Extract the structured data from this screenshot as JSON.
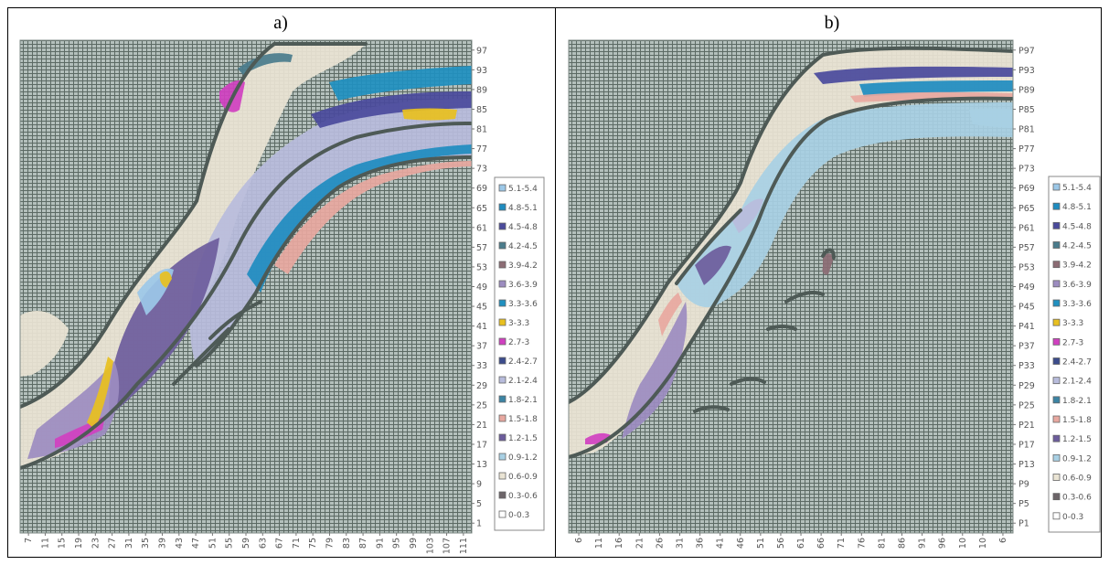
{
  "panels": [
    {
      "title": "a)",
      "y_ticks": [
        "97",
        "93",
        "89",
        "85",
        "81",
        "77",
        "73",
        "69",
        "65",
        "61",
        "57",
        "53",
        "49",
        "45",
        "41",
        "37",
        "33",
        "29",
        "25",
        "21",
        "17",
        "13",
        "9",
        "5",
        "1"
      ],
      "x_ticks": [
        "7",
        "11",
        "15",
        "19",
        "23",
        "27",
        "31",
        "35",
        "39",
        "43",
        "47",
        "51",
        "55",
        "59",
        "63",
        "67",
        "71",
        "75",
        "79",
        "83",
        "87",
        "91",
        "95",
        "99",
        "103",
        "107",
        "111"
      ]
    },
    {
      "title": "b)",
      "y_ticks": [
        "P97",
        "P93",
        "P89",
        "P85",
        "P81",
        "P77",
        "P73",
        "P69",
        "P65",
        "P61",
        "P57",
        "P53",
        "P49",
        "P45",
        "P41",
        "P37",
        "P33",
        "P29",
        "P25",
        "P21",
        "P17",
        "P13",
        "P9",
        "P5",
        "P1"
      ],
      "x_ticks": [
        "6",
        "11",
        "16",
        "21",
        "26",
        "31",
        "36",
        "41",
        "46",
        "51",
        "56",
        "61",
        "66",
        "71",
        "76",
        "81",
        "86",
        "91",
        "96",
        "10",
        "10",
        "6"
      ]
    }
  ],
  "legend": {
    "entries": [
      "5.1-5.4",
      "4.8-5.1",
      "4.5-4.8",
      "4.2-4.5",
      "3.9-4.2",
      "3.6-3.9",
      "3.3-3.6",
      "3-3.3",
      "2.7-3",
      "2.4-2.7",
      "2.1-2.4",
      "1.8-2.1",
      "1.5-1.8",
      "1.2-1.5",
      "0.9-1.2",
      "0.6-0.9",
      "0.3-0.6",
      "0-0.3"
    ],
    "colors": [
      "#9cc8e8",
      "#1e8cc0",
      "#4a4a9c",
      "#4a7c8c",
      "#8c6c74",
      "#9c8cc0",
      "#2090c0",
      "#e8c020",
      "#d040c0",
      "#3c4c8c",
      "#b8bcdc",
      "#3c84a4",
      "#e8a8a0",
      "#6c5c9c",
      "#a8d0e4",
      "#eae4d4",
      "#6c6468",
      "#ffffff"
    ]
  },
  "chart_data": [
    {
      "type": "heatmap",
      "title": "a)",
      "y_tick_labels": [
        "97",
        "93",
        "89",
        "85",
        "81",
        "77",
        "73",
        "69",
        "65",
        "61",
        "57",
        "53",
        "49",
        "45",
        "41",
        "37",
        "33",
        "29",
        "25",
        "21",
        "17",
        "13",
        "9",
        "5",
        "1"
      ],
      "x_tick_labels": [
        "7",
        "11",
        "15",
        "19",
        "23",
        "27",
        "31",
        "35",
        "39",
        "43",
        "47",
        "51",
        "55",
        "59",
        "63",
        "67",
        "71",
        "75",
        "79",
        "83",
        "87",
        "91",
        "95",
        "99",
        "103",
        "107",
        "111"
      ],
      "legend": [
        "5.1-5.4",
        "4.8-5.1",
        "4.5-4.8",
        "4.2-4.5",
        "3.9-4.2",
        "3.6-3.9",
        "3.3-3.6",
        "3-3.3",
        "2.7-3",
        "2.4-2.7",
        "2.1-2.4",
        "1.8-2.1",
        "1.5-1.8",
        "1.2-1.5",
        "0.9-1.2",
        "0.6-0.9",
        "0.3-0.6",
        "0-0.3"
      ],
      "grid": true
    },
    {
      "type": "heatmap",
      "title": "b)",
      "y_tick_labels": [
        "P97",
        "P93",
        "P89",
        "P85",
        "P81",
        "P77",
        "P73",
        "P69",
        "P65",
        "P61",
        "P57",
        "P53",
        "P49",
        "P45",
        "P41",
        "P37",
        "P33",
        "P29",
        "P25",
        "P21",
        "P17",
        "P13",
        "P9",
        "P5",
        "P1"
      ],
      "x_tick_labels": [
        "6",
        "11",
        "16",
        "21",
        "26",
        "31",
        "36",
        "41",
        "46",
        "51",
        "56",
        "61",
        "66",
        "71",
        "76",
        "81",
        "86",
        "91",
        "96",
        "10",
        "10",
        "6"
      ],
      "legend": [
        "5.1-5.4",
        "4.8-5.1",
        "4.5-4.8",
        "4.2-4.5",
        "3.9-4.2",
        "3.6-3.9",
        "3.3-3.6",
        "3-3.3",
        "2.7-3",
        "2.4-2.7",
        "2.1-2.4",
        "1.8-2.1",
        "1.5-1.8",
        "1.2-1.5",
        "0.9-1.2",
        "0.6-0.9",
        "0.3-0.6",
        "0-0.3"
      ],
      "grid": true
    }
  ]
}
